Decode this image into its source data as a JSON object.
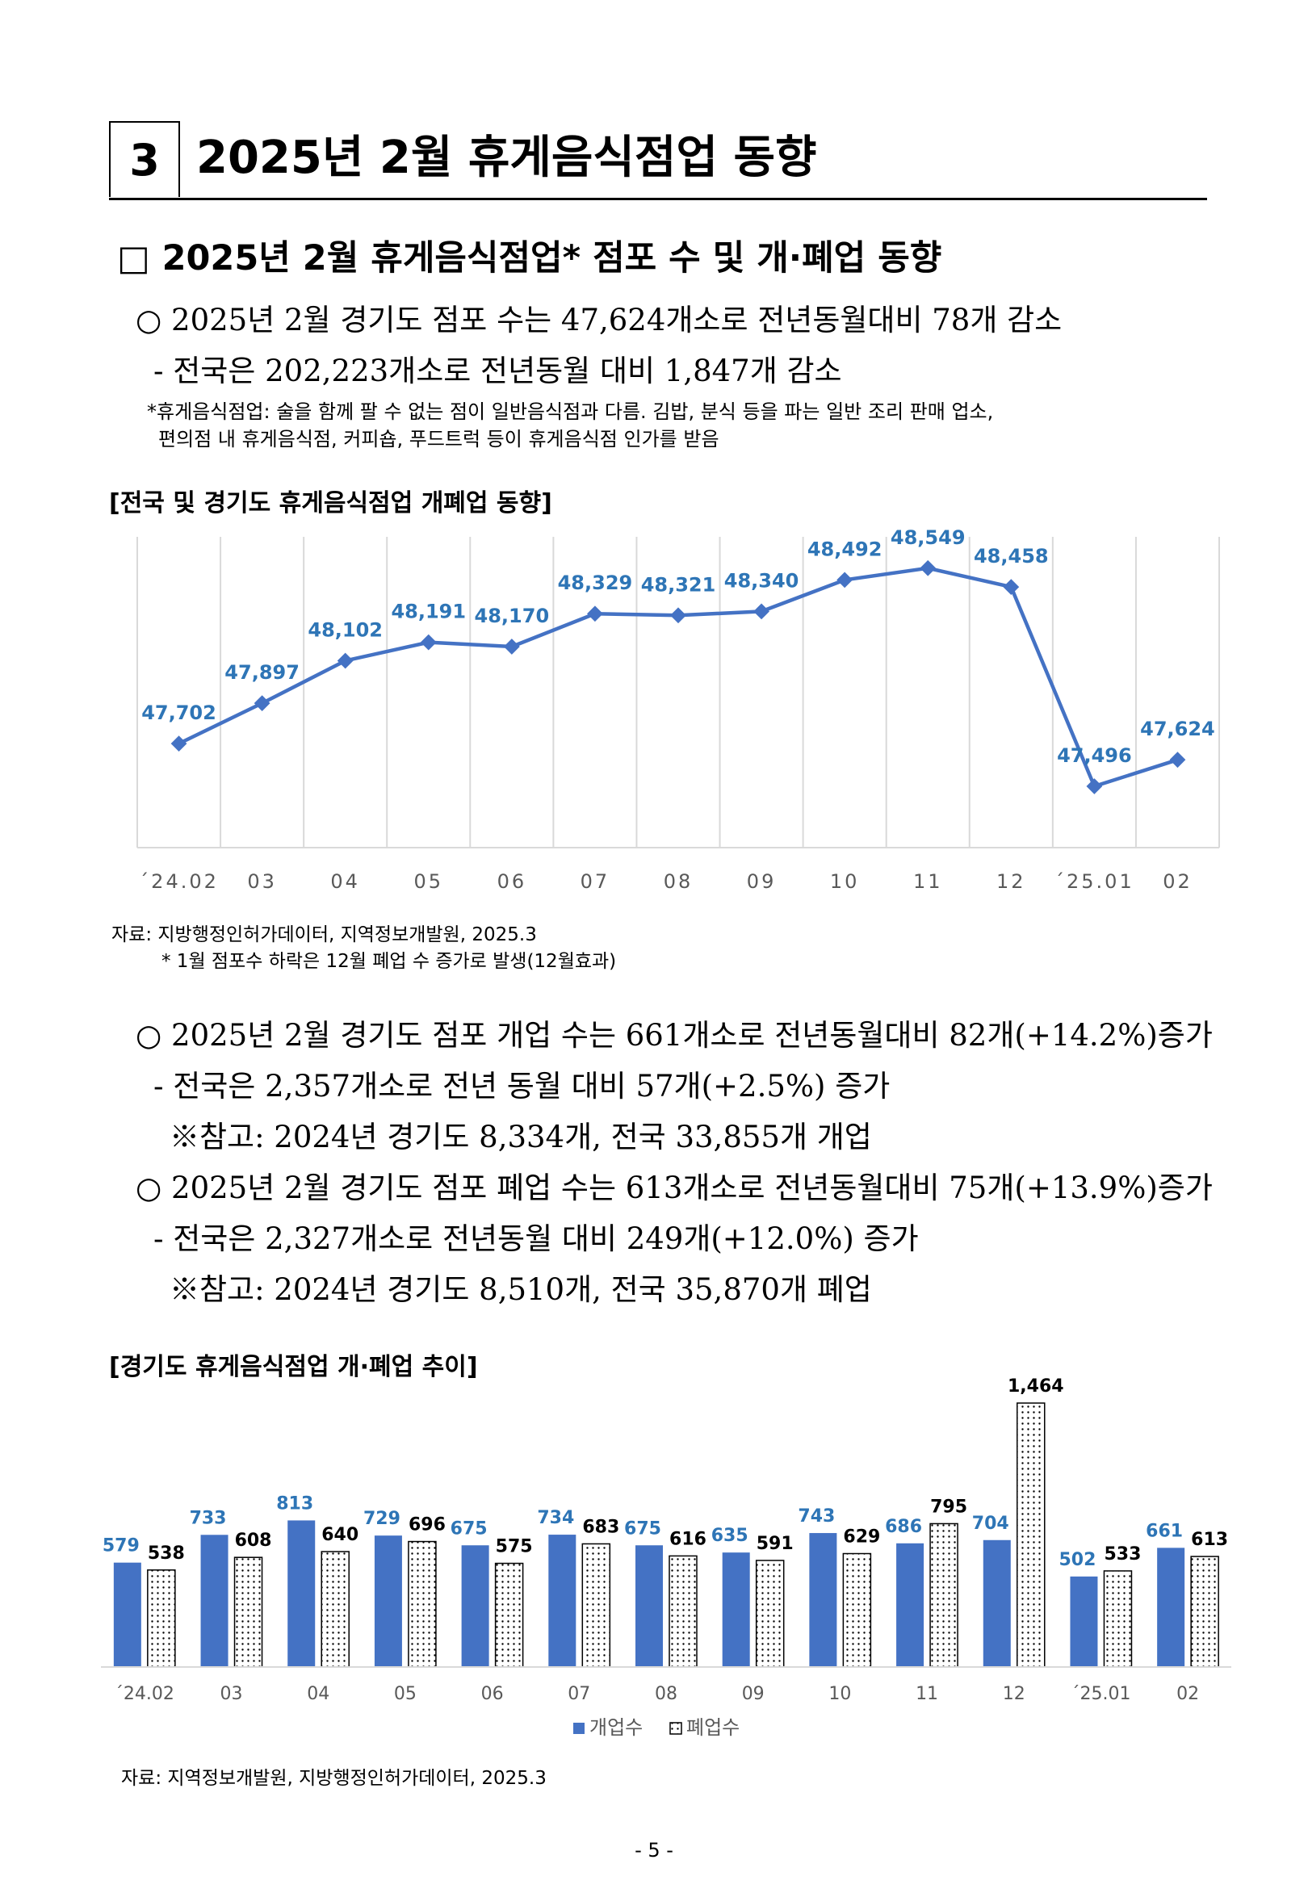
{
  "section": {
    "number": "3",
    "title": "2025년 2월 휴게음식점업 동향"
  },
  "subsection": {
    "title": "□ 2025년 2월 휴게음식점업* 점포 수 및 개·폐업 동향"
  },
  "para1": {
    "line1": "○ 2025년 2월 경기도 점포 수는 47,624개소로 전년동월대비 78개 감소",
    "line2": "- 전국은 202,223개소로 전년동월 대비 1,847개 감소",
    "note1": "*휴게음식점업: 술을 함께 팔 수 없는 점이 일반음식점과 다름. 김밥, 분식 등을 파는 일반 조리 판매 업소,",
    "note2": "편의점 내  휴게음식점, 커피숍, 푸드트럭 등이 휴게음식점 인가를 받음"
  },
  "chart1": {
    "title": "[전국 및 경기도 휴게음식점업 개폐업 동향]"
  },
  "source1": {
    "line1": "자료: 지방행정인허가데이터, 지역정보개발원, 2025.3",
    "line2": "* 1월 점포수 하락은 12월 폐업 수 증가로 발생(12월효과)"
  },
  "para2": {
    "line1": "○ 2025년 2월 경기도 점포 개업 수는 661개소로 전년동월대비 82개(+14.2%)증가",
    "line2": "- 전국은  2,357개소로 전년 동월 대비 57개(+2.5%) 증가",
    "line3": "※참고: 2024년 경기도 8,334개, 전국 33,855개 개업",
    "line4": "○ 2025년 2월 경기도 점포 폐업 수는 613개소로 전년동월대비 75개(+13.9%)증가",
    "line5": "- 전국은  2,327개소로 전년동월 대비 249개(+12.0%) 증가",
    "line6": "※참고: 2024년 경기도 8,510개, 전국 35,870개 폐업"
  },
  "chart2": {
    "title": "[경기도 휴게음식점업 개·폐업 추이]"
  },
  "source2": {
    "line1": "자료: 지역정보개발원, 지방행정인허가데이터, 2025.3"
  },
  "page_number": "- 5 -",
  "colors": {
    "line": "#4472C4",
    "label_blue": "#2E75B6",
    "open_bar": "#4472C4",
    "axis_text": "#595959"
  },
  "chart_data": [
    {
      "type": "line",
      "title": "[전국 및 경기도 휴게음식점업 개폐업 동향]",
      "categories": [
        "´24.02",
        "03",
        "04",
        "05",
        "06",
        "07",
        "08",
        "09",
        "10",
        "11",
        "12",
        "´25.01",
        "02"
      ],
      "values": [
        47702,
        47897,
        48102,
        48191,
        48170,
        48329,
        48321,
        48340,
        48492,
        48549,
        48458,
        47496,
        47624
      ],
      "value_labels": [
        "47,702",
        "47,897",
        "48,102",
        "48,191",
        "48,170",
        "48,329",
        "48,321",
        "48,340",
        "48,492",
        "48,549",
        "48,458",
        "47,496",
        "47,624"
      ],
      "ylim": [
        47200,
        48700
      ],
      "grid": "vertical",
      "legend": "none"
    },
    {
      "type": "bar",
      "title": "[경기도 휴게음식점업 개·폐업 추이]",
      "categories": [
        "´24.02",
        "03",
        "04",
        "05",
        "06",
        "07",
        "08",
        "09",
        "10",
        "11",
        "12",
        "´25.01",
        "02"
      ],
      "series": [
        {
          "name": "개업수",
          "values": [
            579,
            733,
            813,
            729,
            675,
            734,
            675,
            635,
            743,
            686,
            704,
            502,
            661
          ],
          "labels": [
            "579",
            "733",
            "813",
            "729",
            "675",
            "734",
            "675",
            "635",
            "743",
            "686",
            "704",
            "502",
            "661"
          ]
        },
        {
          "name": "폐업수",
          "values": [
            538,
            608,
            640,
            696,
            575,
            683,
            616,
            591,
            629,
            795,
            1464,
            533,
            613
          ],
          "labels": [
            "538",
            "608",
            "640",
            "696",
            "575",
            "683",
            "616",
            "591",
            "629",
            "795",
            "1,464",
            "533",
            "613"
          ]
        }
      ],
      "ylim": [
        0,
        1500
      ],
      "legend": "bottom"
    }
  ]
}
